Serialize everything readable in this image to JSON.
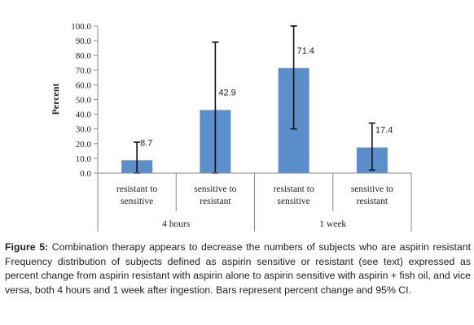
{
  "chart_data": {
    "type": "bar",
    "ylabel": "Percent",
    "ylim": [
      0,
      100
    ],
    "yticks": [
      "0.0",
      "10.0",
      "20.0",
      "30.0",
      "40.0",
      "50.0",
      "60.0",
      "70.0",
      "80.0",
      "90.0",
      "100.0"
    ],
    "groups": [
      {
        "label": "4 hours",
        "categories": [
          [
            "resistant to",
            "sensitive"
          ],
          [
            "sensitive to",
            "resistant"
          ]
        ]
      },
      {
        "label": "1 week",
        "categories": [
          [
            "resistant to",
            "sensitive"
          ],
          [
            "sensitive to",
            "resistant"
          ]
        ]
      }
    ],
    "values": [
      8.7,
      42.9,
      71.4,
      17.4
    ],
    "data_labels": [
      "8.7",
      "42.9",
      "71.4",
      "17.4"
    ],
    "ci_low": [
      0,
      0,
      30,
      2
    ],
    "ci_high": [
      21,
      89,
      100,
      34
    ],
    "bar_color": "#5b8fcb",
    "grid": false
  },
  "caption": {
    "label": "Figure 5:",
    "text": "Combination therapy appears to decrease the numbers of subjects who are aspirin resistant Frequency distribution of subjects defined as aspirin sensitive or resistant (see text) expressed as percent change from aspirin resistant with aspirin alone to aspirin sensitive with aspirin + fish oil, and vice versa, both 4 hours and 1 week after ingestion. Bars represent percent change and 95% CI."
  }
}
